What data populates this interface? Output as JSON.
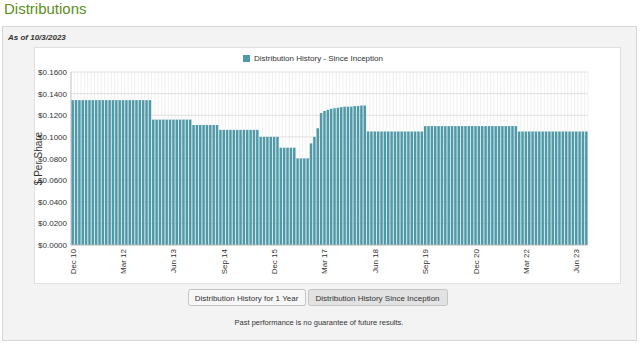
{
  "page": {
    "title": "Distributions",
    "as_of": "As of 10/3/2023",
    "buttons": [
      "Distribution History for 1 Year",
      "Distribution History Since Inception"
    ],
    "footnote": "Past performance is no guarantee of future results."
  },
  "chart_data": {
    "type": "bar",
    "y_label": "$ Per Share",
    "grid": true,
    "legend": "top",
    "categories": [
      "Dec 10",
      null,
      null,
      null,
      null,
      null,
      null,
      null,
      null,
      null,
      null,
      null,
      null,
      null,
      null,
      "Mar 12",
      null,
      null,
      null,
      null,
      null,
      null,
      null,
      null,
      null,
      null,
      null,
      null,
      null,
      null,
      "Jun 13",
      null,
      null,
      null,
      null,
      null,
      null,
      null,
      null,
      null,
      null,
      null,
      null,
      null,
      null,
      "Sep 14",
      null,
      null,
      null,
      null,
      null,
      null,
      null,
      null,
      null,
      null,
      null,
      null,
      null,
      null,
      "Dec 15",
      null,
      null,
      null,
      null,
      null,
      null,
      null,
      null,
      null,
      null,
      null,
      null,
      null,
      null,
      "Mar 17",
      null,
      null,
      null,
      null,
      null,
      null,
      null,
      null,
      null,
      null,
      null,
      null,
      null,
      null,
      "Jun 18",
      null,
      null,
      null,
      null,
      null,
      null,
      null,
      null,
      null,
      null,
      null,
      null,
      null,
      null,
      "Sep 19",
      null,
      null,
      null,
      null,
      null,
      null,
      null,
      null,
      null,
      null,
      null,
      null,
      null,
      null,
      "Dec 20",
      null,
      null,
      null,
      null,
      null,
      null,
      null,
      null,
      null,
      null,
      null,
      null,
      null,
      null,
      "Mar 22",
      null,
      null,
      null,
      null,
      null,
      null,
      null,
      null,
      null,
      null,
      null,
      null,
      null,
      null,
      "Jun 23",
      null,
      null,
      null
    ],
    "series": [
      {
        "name": "Distribution History - Since Inception",
        "color": "#4e9aa8",
        "values": [
          0.134,
          0.134,
          0.134,
          0.134,
          0.134,
          0.134,
          0.134,
          0.134,
          0.134,
          0.134,
          0.134,
          0.134,
          0.134,
          0.134,
          0.134,
          0.134,
          0.134,
          0.134,
          0.134,
          0.134,
          0.134,
          0.134,
          0.134,
          0.134,
          0.116,
          0.116,
          0.116,
          0.116,
          0.116,
          0.116,
          0.116,
          0.116,
          0.116,
          0.116,
          0.116,
          0.116,
          0.111,
          0.111,
          0.111,
          0.111,
          0.111,
          0.111,
          0.111,
          0.111,
          0.1065,
          0.1065,
          0.1065,
          0.1065,
          0.1065,
          0.1065,
          0.1065,
          0.1065,
          0.1065,
          0.1065,
          0.1065,
          0.1065,
          0.1,
          0.1,
          0.1,
          0.1,
          0.1,
          0.1,
          0.09,
          0.09,
          0.09,
          0.09,
          0.09,
          0.08,
          0.08,
          0.08,
          0.08,
          0.094,
          0.1,
          0.108,
          0.122,
          0.124,
          0.125,
          0.126,
          0.1265,
          0.127,
          0.1275,
          0.128,
          0.128,
          0.128,
          0.1285,
          0.1285,
          0.129,
          0.129,
          0.105,
          0.105,
          0.105,
          0.105,
          0.105,
          0.105,
          0.105,
          0.105,
          0.105,
          0.105,
          0.105,
          0.105,
          0.105,
          0.105,
          0.105,
          0.105,
          0.105,
          0.11,
          0.11,
          0.11,
          0.11,
          0.11,
          0.11,
          0.11,
          0.11,
          0.11,
          0.11,
          0.11,
          0.11,
          0.11,
          0.11,
          0.11,
          0.11,
          0.11,
          0.11,
          0.11,
          0.11,
          0.11,
          0.11,
          0.11,
          0.11,
          0.11,
          0.11,
          0.11,
          0.11,
          0.105,
          0.105,
          0.105,
          0.105,
          0.105,
          0.105,
          0.105,
          0.105,
          0.105,
          0.105,
          0.105,
          0.105,
          0.105,
          0.105,
          0.105,
          0.105,
          0.105,
          0.105,
          0.105,
          0.105,
          0.105
        ]
      }
    ],
    "ylim": [
      0,
      0.16
    ],
    "yticks": [
      {
        "value": 0,
        "label": "$0.0000"
      },
      {
        "value": 0.02,
        "label": "$0.0200"
      },
      {
        "value": 0.04,
        "label": "$0.0400"
      },
      {
        "value": 0.06,
        "label": "$0.0600"
      },
      {
        "value": 0.08,
        "label": "$0.0800"
      },
      {
        "value": 0.1,
        "label": "$0.1000"
      },
      {
        "value": 0.12,
        "label": "$0.1200"
      },
      {
        "value": 0.14,
        "label": "$0.1400"
      },
      {
        "value": 0.16,
        "label": "$0.1600"
      }
    ]
  }
}
